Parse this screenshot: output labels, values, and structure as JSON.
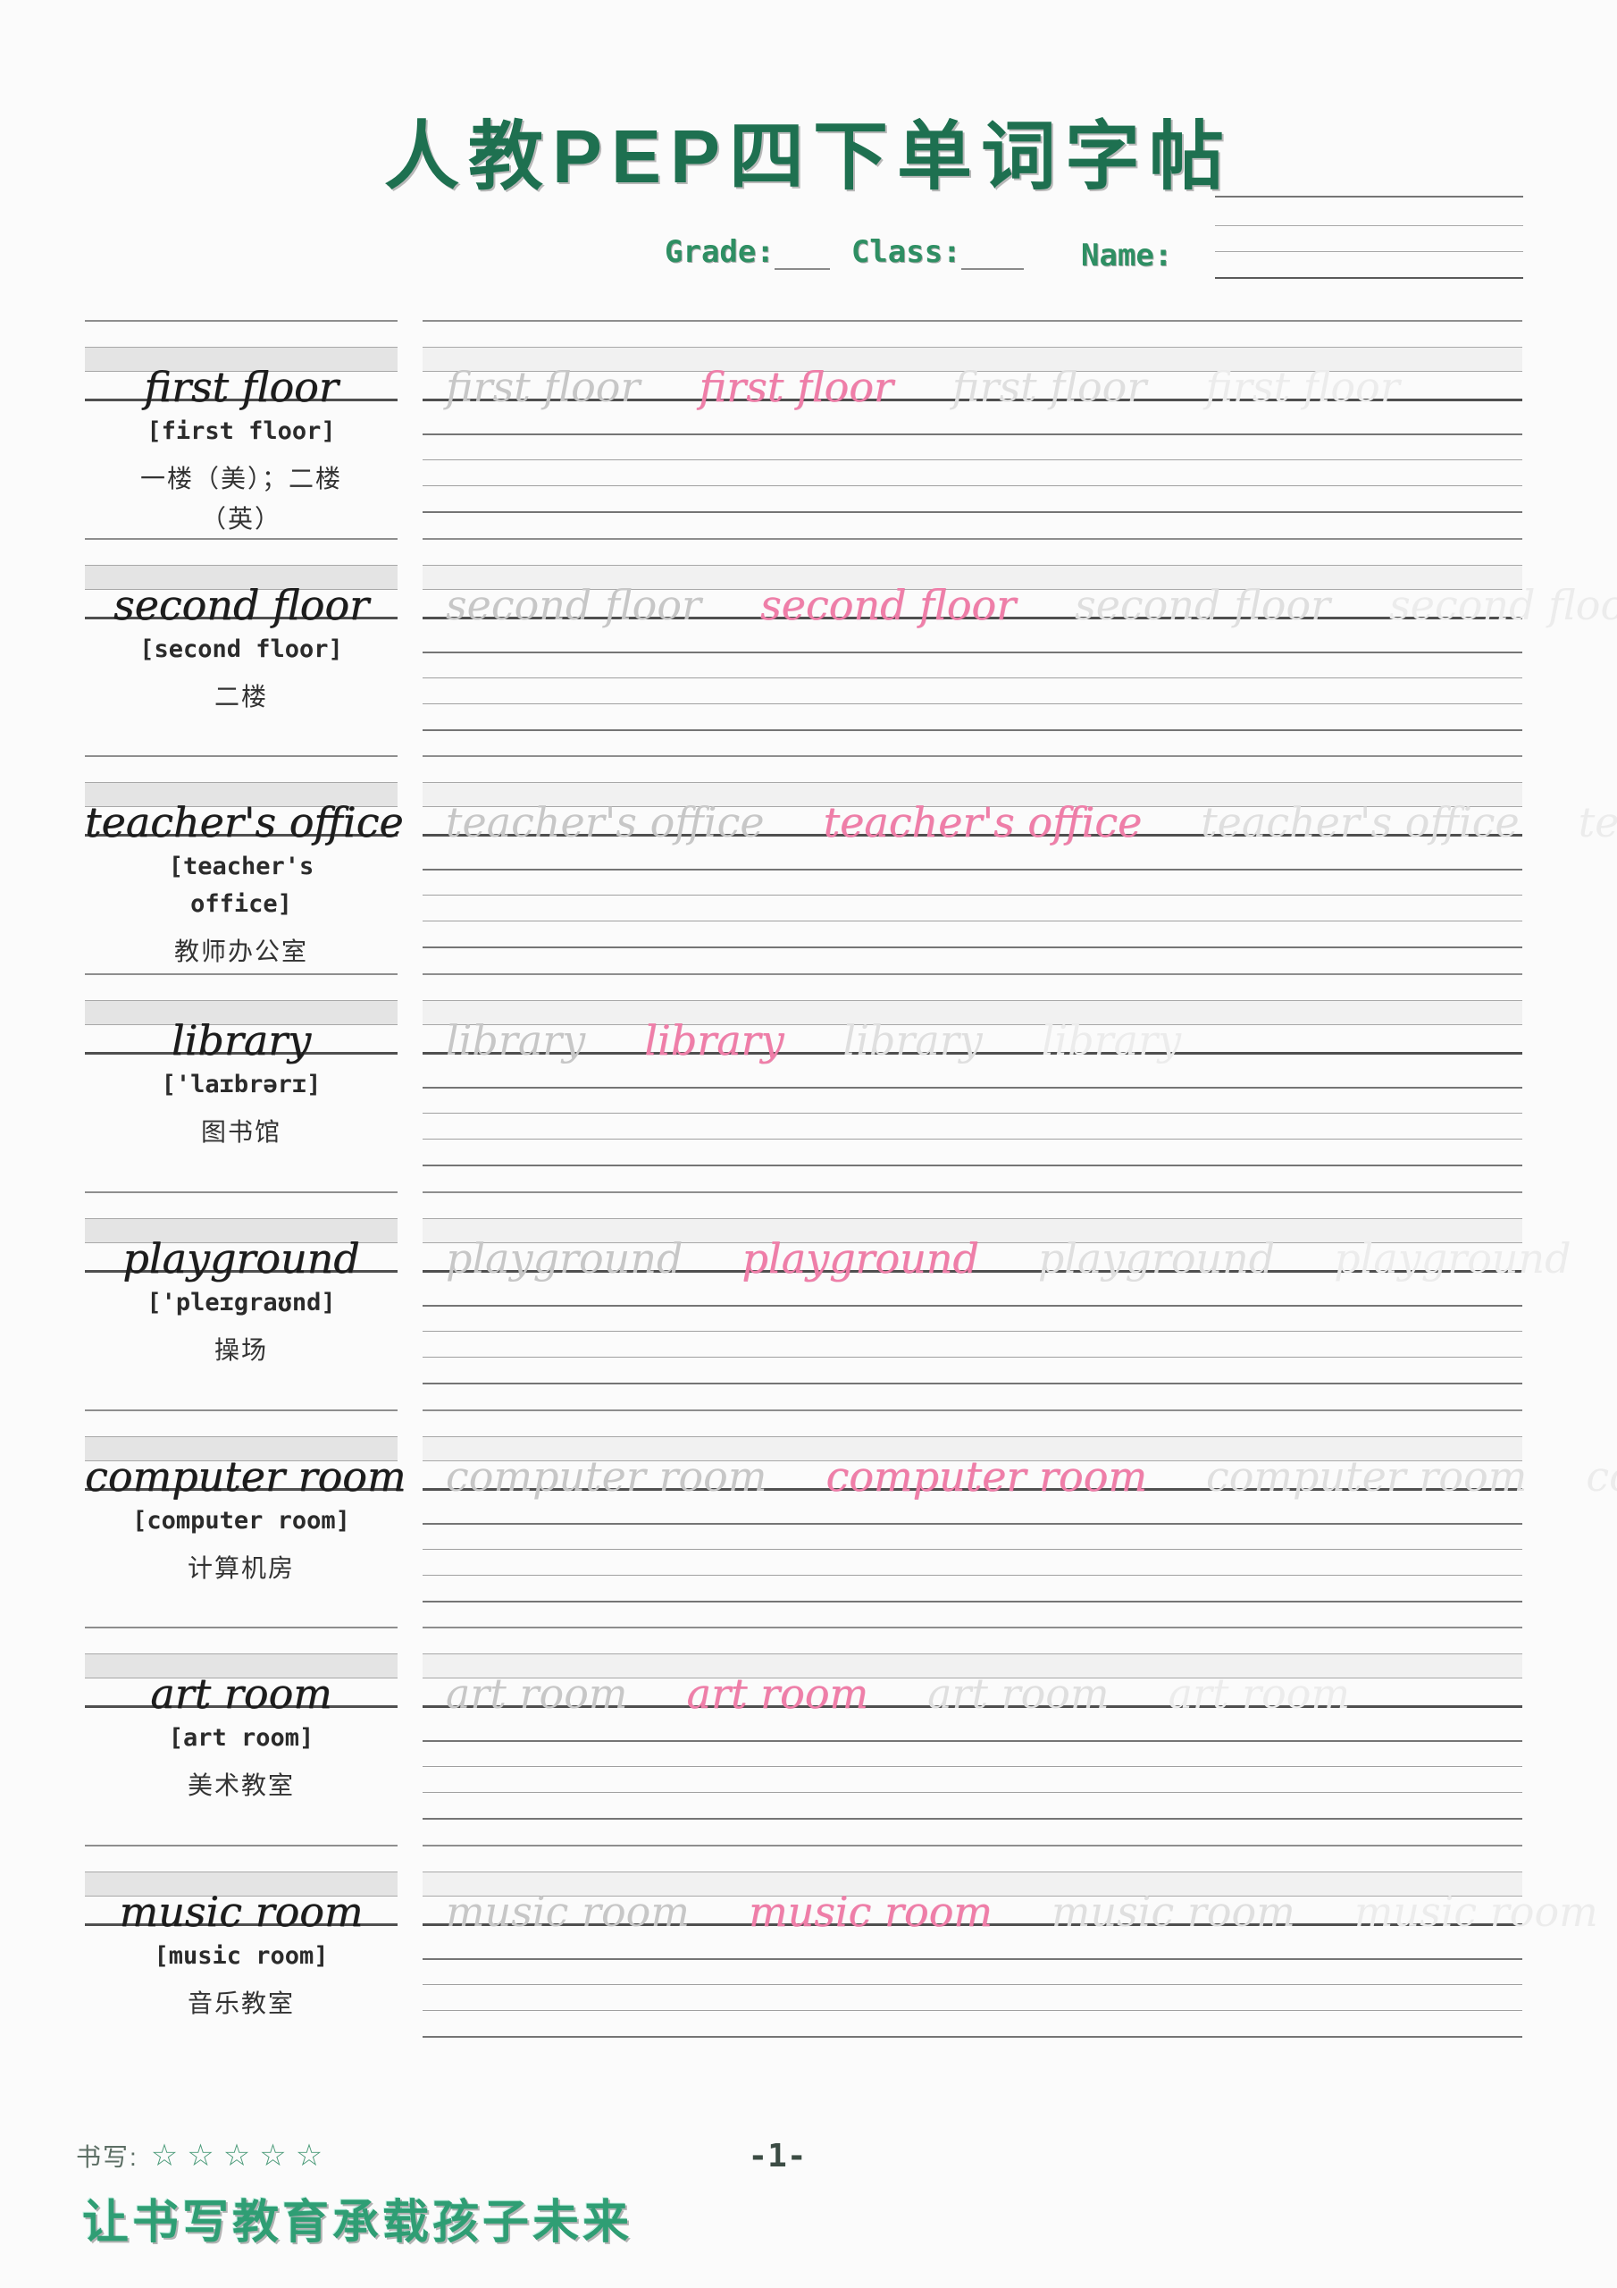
{
  "header": {
    "title": "人教PEP四下单词字帖",
    "grade_label": "Grade:",
    "class_label": "Class:",
    "name_label": "Name:"
  },
  "words": [
    {
      "word": "first floor",
      "phonetic": "[first floor]",
      "meaning": "一楼（美）；二楼\n（英）"
    },
    {
      "word": "second floor",
      "phonetic": "[second floor]",
      "meaning": "二楼"
    },
    {
      "word": "teacher's office",
      "phonetic": "[teacher's office]",
      "meaning": "教师办公室"
    },
    {
      "word": "library",
      "phonetic": "['laɪbrərɪ]",
      "meaning": "图书馆"
    },
    {
      "word": "playground",
      "phonetic": "['pleɪgraʊnd]",
      "meaning": "操场"
    },
    {
      "word": "computer room",
      "phonetic": "[computer room]",
      "meaning": "计算机房"
    },
    {
      "word": "art room",
      "phonetic": "[art room]",
      "meaning": "美术教室"
    },
    {
      "word": "music room",
      "phonetic": "[music room]",
      "meaning": "音乐教室"
    }
  ],
  "footer": {
    "rating_label": "书写:",
    "stars": "☆☆☆☆☆",
    "page_number": "-1-",
    "slogan": "让书写教育承载孩子未来"
  },
  "colors": {
    "title_green": "#1e7050",
    "field_green": "#2e8f63",
    "slogan_green": "#2f9e74",
    "practice_pink": "#ef7ea8",
    "trace_gray": "#c7c7c7",
    "guide_line_dark": "#4f4f4f",
    "guide_line_light": "#a8a8a8"
  }
}
